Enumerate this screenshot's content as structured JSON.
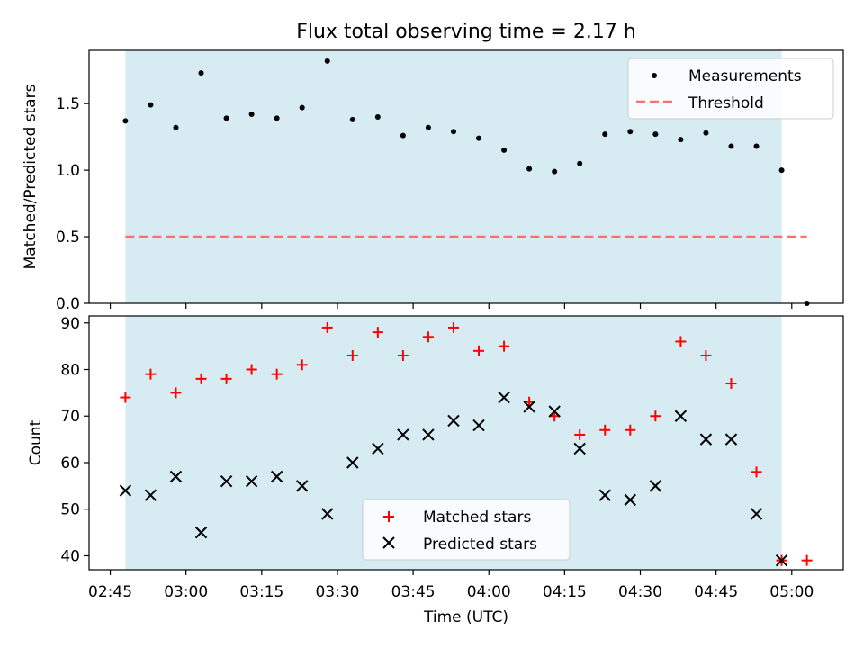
{
  "chart_data": [
    {
      "type": "scatter",
      "title": "Flux total observing time = 2.17 h",
      "ylabel": "Matched/Predicted stars",
      "xlabel": "",
      "ylim": [
        0,
        1.9
      ],
      "yticks": [
        "0.0",
        "0.5",
        "1.0",
        "1.5"
      ],
      "shaded_span_x": [
        "02:48",
        "04:58"
      ],
      "legend_position": "upper right",
      "series": [
        {
          "name": "Measurements",
          "marker": "dot",
          "color": "#000000",
          "x": [
            "02:48",
            "02:53",
            "02:58",
            "03:03",
            "03:08",
            "03:13",
            "03:18",
            "03:23",
            "03:28",
            "03:33",
            "03:38",
            "03:43",
            "03:48",
            "03:53",
            "03:58",
            "04:03",
            "04:08",
            "04:13",
            "04:18",
            "04:23",
            "04:28",
            "04:33",
            "04:38",
            "04:43",
            "04:48",
            "04:53",
            "04:58",
            "05:03"
          ],
          "y": [
            1.37,
            1.49,
            1.32,
            1.73,
            1.39,
            1.42,
            1.39,
            1.47,
            1.82,
            1.38,
            1.4,
            1.26,
            1.32,
            1.29,
            1.24,
            1.15,
            1.01,
            0.99,
            1.05,
            1.27,
            1.29,
            1.27,
            1.23,
            1.28,
            1.18,
            1.18,
            1.0,
            0.0
          ]
        },
        {
          "name": "Threshold",
          "style": "dashed",
          "color": "#ff6f6f",
          "x": [
            "02:48",
            "05:03"
          ],
          "y": [
            0.5,
            0.5
          ]
        }
      ]
    },
    {
      "type": "scatter",
      "xlabel": "Time (UTC)",
      "ylabel": "Count",
      "ylim": [
        37,
        91.5
      ],
      "yticks": [
        "40",
        "50",
        "60",
        "70",
        "80",
        "90"
      ],
      "xticks": [
        "02:45",
        "03:00",
        "03:15",
        "03:30",
        "03:45",
        "04:00",
        "04:15",
        "04:30",
        "04:45",
        "05:00"
      ],
      "shaded_span_x": [
        "02:48",
        "04:58"
      ],
      "legend_position": "lower center",
      "series": [
        {
          "name": "Matched stars",
          "marker": "plus",
          "color": "#ff0000",
          "x": [
            "02:48",
            "02:53",
            "02:58",
            "03:03",
            "03:08",
            "03:13",
            "03:18",
            "03:23",
            "03:28",
            "03:33",
            "03:38",
            "03:43",
            "03:48",
            "03:53",
            "03:58",
            "04:03",
            "04:08",
            "04:13",
            "04:18",
            "04:23",
            "04:28",
            "04:33",
            "04:38",
            "04:43",
            "04:48",
            "04:53",
            "04:58",
            "05:03"
          ],
          "y": [
            74,
            79,
            75,
            78,
            78,
            80,
            79,
            81,
            89,
            83,
            88,
            83,
            87,
            89,
            84,
            85,
            73,
            70,
            66,
            67,
            67,
            70,
            86,
            83,
            77,
            58,
            39,
            39
          ]
        },
        {
          "name": "Predicted stars",
          "marker": "x",
          "color": "#000000",
          "x": [
            "02:48",
            "02:53",
            "02:58",
            "03:03",
            "03:08",
            "03:13",
            "03:18",
            "03:23",
            "03:28",
            "03:33",
            "03:38",
            "03:43",
            "03:48",
            "03:53",
            "03:58",
            "04:03",
            "04:08",
            "04:13",
            "04:18",
            "04:23",
            "04:28",
            "04:33",
            "04:38",
            "04:43",
            "04:48",
            "04:53",
            "04:58"
          ],
          "y": [
            54,
            53,
            57,
            45,
            56,
            56,
            57,
            55,
            49,
            60,
            63,
            66,
            66,
            69,
            68,
            74,
            72,
            71,
            63,
            53,
            52,
            55,
            70,
            65,
            65,
            49,
            39
          ]
        }
      ]
    }
  ],
  "colors": {
    "shade": "#add8e6",
    "shade_opacity": 0.5,
    "axes": "#000000"
  }
}
